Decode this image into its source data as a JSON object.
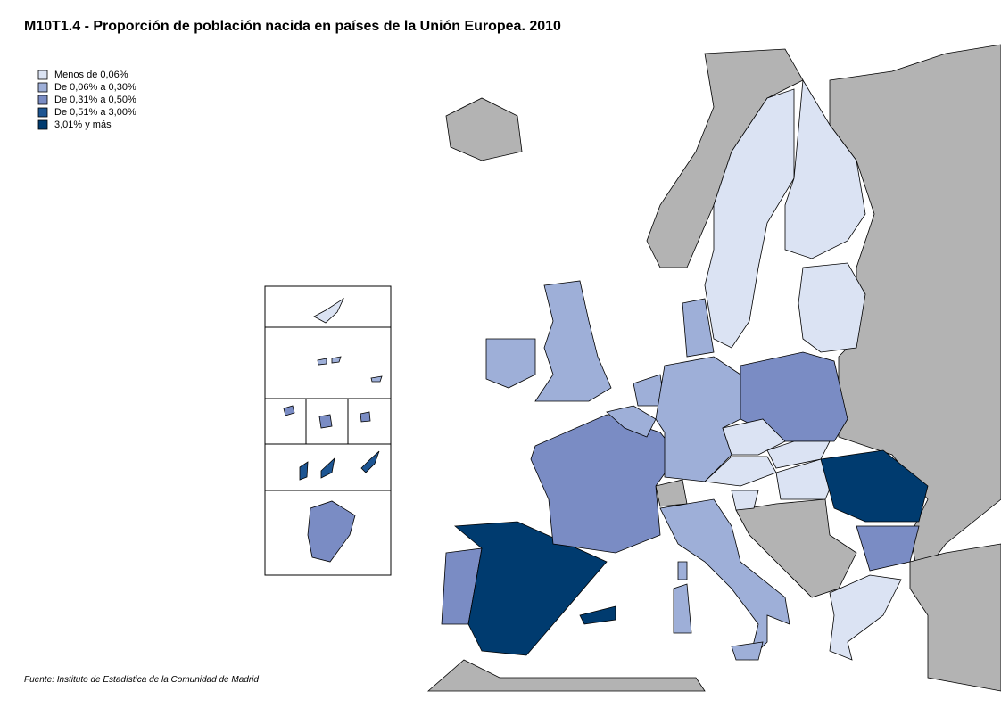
{
  "title": "M10T1.4 - Proporción de población nacida en países de la Unión Europea. 2010",
  "legend": [
    {
      "label": "Menos de 0,06%",
      "color": "#dbe3f3"
    },
    {
      "label": "De 0,06% a 0,30%",
      "color": "#9eafd8"
    },
    {
      "label": "De 0,31% a 0,50%",
      "color": "#7a8cc4"
    },
    {
      "label": "De 0,51% a 3,00%",
      "color": "#1d5592"
    },
    {
      "label": "3,01% y más",
      "color": "#003b6f"
    }
  ],
  "source": "Fuente: Instituto de Estadística de la Comunidad de Madrid"
}
